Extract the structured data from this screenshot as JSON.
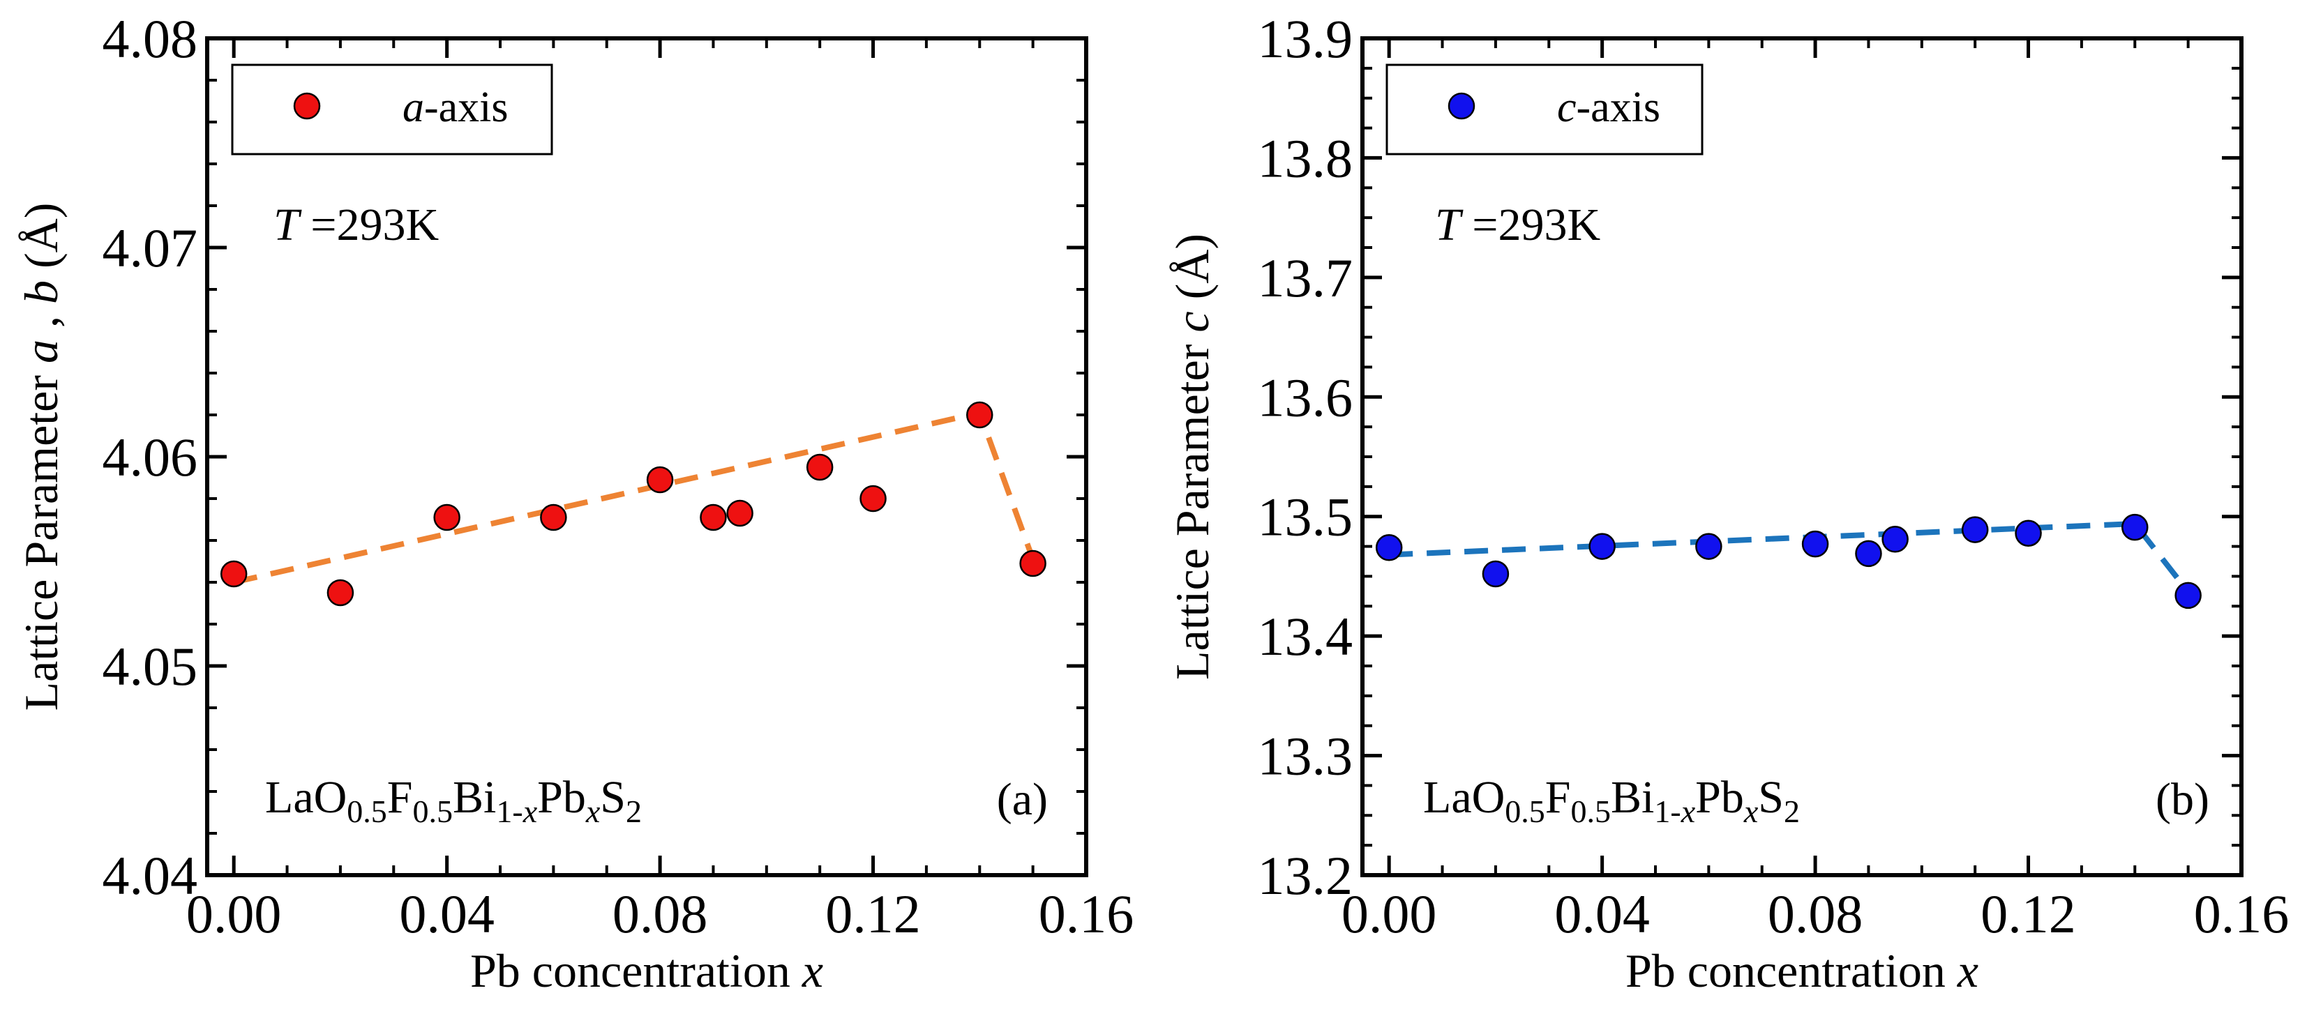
{
  "chart_data": [
    {
      "id": "a",
      "type": "scatter",
      "panel_label": "(a)",
      "xlabel": {
        "text": "Pb concentration ",
        "var": "x"
      },
      "ylabel": {
        "prefix": "Lattice Parameter ",
        "var1": "a",
        "sep": " , ",
        "var2": "b",
        "unit": " (Å)"
      },
      "xlim": [
        -0.005,
        0.16
      ],
      "ylim": [
        4.04,
        4.08
      ],
      "xticks": [
        0,
        0.04,
        0.08,
        0.12,
        0.16
      ],
      "xtick_labels": [
        "0.00",
        "0.04",
        "0.08",
        "0.12",
        "0.16"
      ],
      "yticks": [
        4.04,
        4.05,
        4.06,
        4.07,
        4.08
      ],
      "ytick_labels": [
        "4.04",
        "4.05",
        "4.06",
        "4.07",
        "4.08"
      ],
      "x_minor_step": 0.01,
      "y_minor_step": 0.002,
      "legend": {
        "var": "a",
        "text": "-axis",
        "position": "top-left"
      },
      "annotation": {
        "var": "T",
        "text": " =293K"
      },
      "compound": {
        "parts": [
          {
            "t": "LaO",
            "s": "n"
          },
          {
            "t": "0.5",
            "s": "sub"
          },
          {
            "t": "F",
            "s": "n"
          },
          {
            "t": "0.5",
            "s": "sub"
          },
          {
            "t": "Bi",
            "s": "n"
          },
          {
            "t": "1-",
            "s": "sub"
          },
          {
            "t": "x",
            "s": "subi"
          },
          {
            "t": "Pb",
            "s": "n"
          },
          {
            "t": "x",
            "s": "subi"
          },
          {
            "t": "S",
            "s": "n"
          },
          {
            "t": "2",
            "s": "sub"
          }
        ]
      },
      "series": [
        {
          "marker_color": "#ee1111",
          "x": [
            0.0,
            0.02,
            0.04,
            0.06,
            0.08,
            0.09,
            0.095,
            0.11,
            0.12,
            0.14,
            0.15
          ],
          "y": [
            4.0544,
            4.0535,
            4.0571,
            4.0571,
            4.0589,
            4.0571,
            4.0573,
            4.0595,
            4.058,
            4.062,
            4.0549
          ]
        }
      ],
      "fit_line": {
        "color": "#ee8333",
        "x": [
          0.0,
          0.14,
          0.15
        ],
        "y": [
          4.054,
          4.0621,
          4.0551
        ]
      }
    },
    {
      "id": "b",
      "type": "scatter",
      "panel_label": "(b)",
      "xlabel": {
        "text": "Pb concentration ",
        "var": "x"
      },
      "ylabel": {
        "prefix": "Lattice Parameter ",
        "var1": "c",
        "sep": "",
        "var2": "",
        "unit": " (Å)"
      },
      "xlim": [
        -0.005,
        0.16
      ],
      "ylim": [
        13.2,
        13.9
      ],
      "xticks": [
        0,
        0.04,
        0.08,
        0.12,
        0.16
      ],
      "xtick_labels": [
        "0.00",
        "0.04",
        "0.08",
        "0.12",
        "0.16"
      ],
      "yticks": [
        13.2,
        13.3,
        13.4,
        13.5,
        13.6,
        13.7,
        13.8,
        13.9
      ],
      "ytick_labels": [
        "13.2",
        "13.3",
        "13.4",
        "13.5",
        "13.6",
        "13.7",
        "13.8",
        "13.9"
      ],
      "x_minor_step": 0.01,
      "y_minor_step": 0.025,
      "legend": {
        "var": "c",
        "text": "-axis",
        "position": "top-left"
      },
      "annotation": {
        "var": "T",
        "text": " =293K"
      },
      "compound": {
        "parts": [
          {
            "t": "LaO",
            "s": "n"
          },
          {
            "t": "0.5",
            "s": "sub"
          },
          {
            "t": "F",
            "s": "n"
          },
          {
            "t": "0.5",
            "s": "sub"
          },
          {
            "t": "Bi",
            "s": "n"
          },
          {
            "t": "1-",
            "s": "sub"
          },
          {
            "t": "x",
            "s": "subi"
          },
          {
            "t": "Pb",
            "s": "n"
          },
          {
            "t": "x",
            "s": "subi"
          },
          {
            "t": "S",
            "s": "n"
          },
          {
            "t": "2",
            "s": "sub"
          }
        ]
      },
      "series": [
        {
          "marker_color": "#1111ee",
          "x": [
            0.0,
            0.02,
            0.04,
            0.06,
            0.08,
            0.09,
            0.095,
            0.11,
            0.12,
            0.14,
            0.15
          ],
          "y": [
            13.474,
            13.452,
            13.475,
            13.475,
            13.477,
            13.469,
            13.481,
            13.489,
            13.486,
            13.491,
            13.434
          ]
        }
      ],
      "fit_line": {
        "color": "#1c74bc",
        "x": [
          0.0,
          0.14,
          0.15
        ],
        "y": [
          13.468,
          13.494,
          13.437
        ]
      }
    }
  ]
}
